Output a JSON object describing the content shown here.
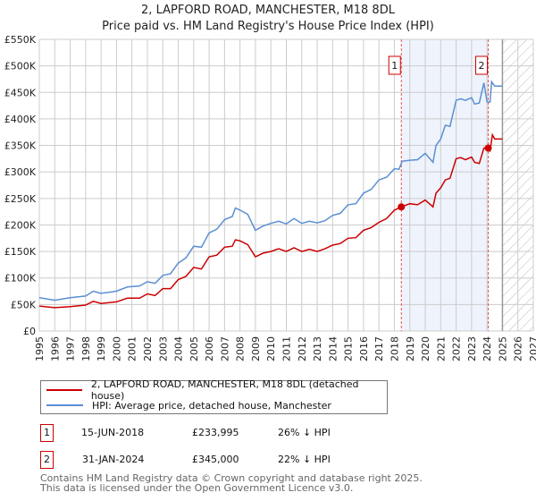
{
  "title": "2, LAPFORD ROAD, MANCHESTER, M18 8DL",
  "subtitle": "Price paid vs. HM Land Registry's House Price Index (HPI)",
  "chart_data": {
    "type": "line",
    "title": "2, LAPFORD ROAD, MANCHESTER, M18 8DL",
    "subtitle": "Price paid vs. HM Land Registry's House Price Index (HPI)",
    "xlim": [
      1995,
      2027
    ],
    "ylim": [
      0,
      550000
    ],
    "x_ticks": [
      "1995",
      "1996",
      "1997",
      "1998",
      "1999",
      "2000",
      "2001",
      "2002",
      "2003",
      "2004",
      "2005",
      "2006",
      "2007",
      "2008",
      "2009",
      "2010",
      "2011",
      "2012",
      "2013",
      "2014",
      "2015",
      "2016",
      "2017",
      "2018",
      "2019",
      "2020",
      "2021",
      "2022",
      "2023",
      "2024",
      "2025",
      "2026",
      "2027"
    ],
    "y_ticks": [
      {
        "v": 0,
        "label": "£0"
      },
      {
        "v": 50000,
        "label": "£50K"
      },
      {
        "v": 100000,
        "label": "£100K"
      },
      {
        "v": 150000,
        "label": "£150K"
      },
      {
        "v": 200000,
        "label": "£200K"
      },
      {
        "v": 250000,
        "label": "£250K"
      },
      {
        "v": 300000,
        "label": "£300K"
      },
      {
        "v": 350000,
        "label": "£350K"
      },
      {
        "v": 400000,
        "label": "£400K"
      },
      {
        "v": 450000,
        "label": "£450K"
      },
      {
        "v": 500000,
        "label": "£500K"
      },
      {
        "v": 550000,
        "label": "£550K"
      }
    ],
    "grid": true,
    "shaded_range": [
      2018.45,
      2024.08
    ],
    "forecast_hatch_from": 2025,
    "series": [
      {
        "name": "2, LAPFORD ROAD, MANCHESTER, M18 8DL (detached house)",
        "color": "#cc0000",
        "x": [
          1995,
          1996,
          1997,
          1998,
          1998.5,
          1999,
          2000,
          2000.7,
          2001.5,
          2002,
          2002.5,
          2003,
          2003.5,
          2004,
          2004.5,
          2005,
          2005.5,
          2006,
          2006.5,
          2007,
          2007.5,
          2007.7,
          2008,
          2008.5,
          2009,
          2009.5,
          2010,
          2010.5,
          2011,
          2011.5,
          2012,
          2012.5,
          2013,
          2013.5,
          2014,
          2014.5,
          2015,
          2015.5,
          2016,
          2016.5,
          2017,
          2017.5,
          2018,
          2018.45,
          2019,
          2019.5,
          2020,
          2020.5,
          2020.7,
          2021,
          2021.3,
          2021.6,
          2022,
          2022.3,
          2022.6,
          2023,
          2023.2,
          2023.5,
          2023.8,
          2024.08,
          2024.2,
          2024.35,
          2024.5,
          2025
        ],
        "y": [
          47000,
          44000,
          46000,
          49000,
          56000,
          52000,
          55000,
          62000,
          62000,
          70000,
          67000,
          80000,
          80000,
          97000,
          103000,
          120000,
          117000,
          140000,
          143000,
          158000,
          160000,
          172000,
          170000,
          163000,
          140000,
          147000,
          150000,
          155000,
          150000,
          157000,
          150000,
          154000,
          150000,
          155000,
          162000,
          165000,
          175000,
          176000,
          190000,
          195000,
          205000,
          212000,
          228000,
          233995,
          240000,
          238000,
          247000,
          234000,
          260000,
          270000,
          285000,
          288000,
          325000,
          327000,
          323000,
          328000,
          318000,
          316000,
          345000,
          345000,
          340000,
          370000,
          362000,
          362000
        ]
      },
      {
        "name": "HPI: Average price, detached house, Manchester",
        "color": "#5b8fd4",
        "x": [
          1995,
          1996,
          1997,
          1998,
          1998.5,
          1999,
          2000,
          2000.7,
          2001.5,
          2002,
          2002.5,
          2003,
          2003.5,
          2004,
          2004.5,
          2005,
          2005.5,
          2006,
          2006.5,
          2007,
          2007.5,
          2007.7,
          2008,
          2008.5,
          2009,
          2009.5,
          2010,
          2010.5,
          2011,
          2011.5,
          2012,
          2012.5,
          2013,
          2013.5,
          2014,
          2014.5,
          2015,
          2015.5,
          2016,
          2016.5,
          2017,
          2017.5,
          2018,
          2018.3,
          2018.5,
          2019,
          2019.5,
          2020,
          2020.5,
          2020.7,
          2021,
          2021.3,
          2021.6,
          2022,
          2022.3,
          2022.6,
          2023,
          2023.2,
          2023.5,
          2023.8,
          2024,
          2024.2,
          2024.3,
          2024.5,
          2025
        ],
        "y": [
          63000,
          58000,
          63000,
          66000,
          75000,
          71000,
          75000,
          83000,
          85000,
          93000,
          90000,
          105000,
          108000,
          128000,
          138000,
          160000,
          158000,
          185000,
          192000,
          210000,
          216000,
          232000,
          228000,
          220000,
          190000,
          198000,
          203000,
          207000,
          202000,
          212000,
          203000,
          207000,
          204000,
          208000,
          218000,
          222000,
          238000,
          240000,
          260000,
          267000,
          285000,
          290000,
          306000,
          305000,
          320000,
          322000,
          323000,
          335000,
          318000,
          350000,
          362000,
          388000,
          386000,
          435000,
          438000,
          435000,
          440000,
          428000,
          430000,
          468000,
          432000,
          432000,
          470000,
          462000,
          462000
        ]
      }
    ],
    "annotations": [
      {
        "label": "1",
        "x": 2018.45,
        "y": 233995
      },
      {
        "label": "2",
        "x": 2024.08,
        "y": 345000
      }
    ]
  },
  "legend": [
    {
      "label": "2, LAPFORD ROAD, MANCHESTER, M18 8DL (detached house)",
      "color": "#cc0000"
    },
    {
      "label": "HPI: Average price, detached house, Manchester",
      "color": "#5b8fd4"
    }
  ],
  "transactions": [
    {
      "num": "1",
      "date": "15-JUN-2018",
      "price": "£233,995",
      "hpi": "26% ↓ HPI"
    },
    {
      "num": "2",
      "date": "31-JAN-2024",
      "price": "£345,000",
      "hpi": "22% ↓ HPI"
    }
  ],
  "footer": {
    "line1": "Contains HM Land Registry data © Crown copyright and database right 2025.",
    "line2": "This data is licensed under the Open Government Licence v3.0."
  }
}
